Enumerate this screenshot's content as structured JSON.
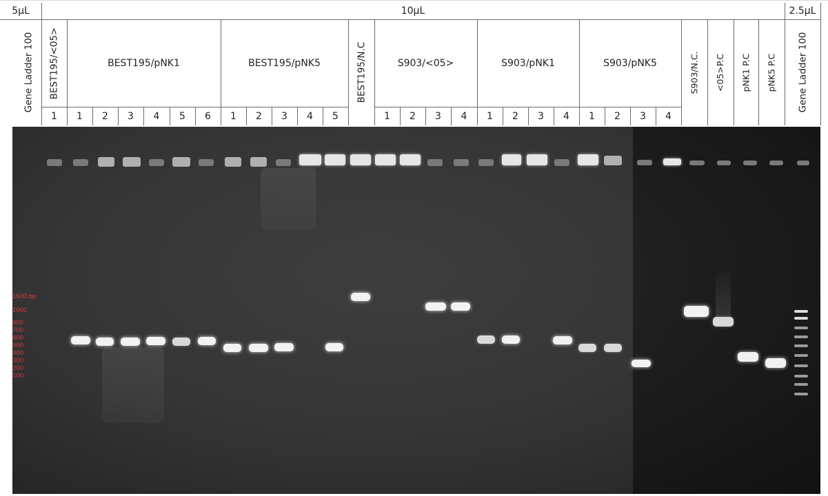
{
  "volumes": {
    "left": "5µL",
    "center": "10µL",
    "right": "2.5µL"
  },
  "ladder_label": "Gene Ladder 100",
  "groups": {
    "best195_05": "BEST195/<05>",
    "best195_pnk1": "BEST195/pNK1",
    "best195_pnk5": "BEST195/pNK5",
    "best195_nc": "BEST195/N.C",
    "s903_05": "S903/<05>",
    "s903_pnk1": "S903/pNK1",
    "s903_pnk5": "S903/pNK5",
    "s903_nc": "S903/N.C.",
    "pc_05": "<05>P.C",
    "pc_pnk1": "pNK1 P.C",
    "pc_pnk5": "pNK5 P.C"
  },
  "lane_numbers": {
    "best195_05": [
      "1"
    ],
    "best195_pnk1": [
      "1",
      "2",
      "3",
      "4",
      "5",
      "6"
    ],
    "best195_pnk5": [
      "1",
      "2",
      "3",
      "4",
      "5"
    ],
    "s903_05": [
      "1",
      "2",
      "3",
      "4"
    ],
    "s903_pnk1": [
      "1",
      "2",
      "3",
      "4"
    ],
    "s903_pnk5": [
      "1",
      "2",
      "3",
      "4"
    ]
  },
  "marker_labels": [
    "1500 bp",
    "1000",
    "900",
    "700",
    "600",
    "500",
    "400",
    "300",
    "200",
    "100"
  ],
  "colors": {
    "gel": "#343434",
    "gel_dark": "#1c1c1c",
    "band": "#f2f2f2",
    "marker_text": "#e0393e"
  }
}
